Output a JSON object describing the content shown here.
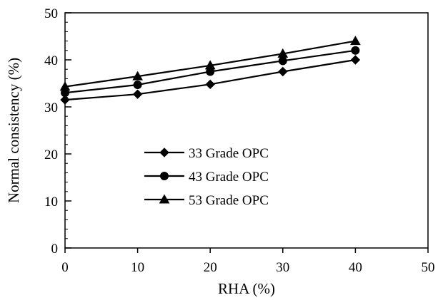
{
  "chart_data": {
    "type": "line",
    "title": "",
    "xlabel": "RHA (%)",
    "ylabel": "Normal consistency (%)",
    "xlim": [
      0,
      50
    ],
    "ylim": [
      0,
      50
    ],
    "x_ticks": [
      0,
      10,
      20,
      30,
      40,
      50
    ],
    "y_ticks": [
      0,
      10,
      20,
      30,
      40,
      50
    ],
    "grid": false,
    "legend_position": "center-left",
    "series": [
      {
        "name": "33 Grade OPC",
        "marker": "diamond",
        "color": "#000000",
        "x": [
          0,
          10,
          20,
          30,
          40
        ],
        "y": [
          31.5,
          32.7,
          34.8,
          37.5,
          40.0
        ]
      },
      {
        "name": "43 Grade OPC",
        "marker": "circle",
        "color": "#000000",
        "x": [
          0,
          10,
          20,
          30,
          40
        ],
        "y": [
          33.0,
          34.7,
          37.5,
          39.8,
          42.0
        ]
      },
      {
        "name": "53 Grade OPC",
        "marker": "triangle",
        "color": "#000000",
        "x": [
          0,
          10,
          20,
          30,
          40
        ],
        "y": [
          34.3,
          36.5,
          38.8,
          41.3,
          44.0
        ]
      }
    ]
  }
}
